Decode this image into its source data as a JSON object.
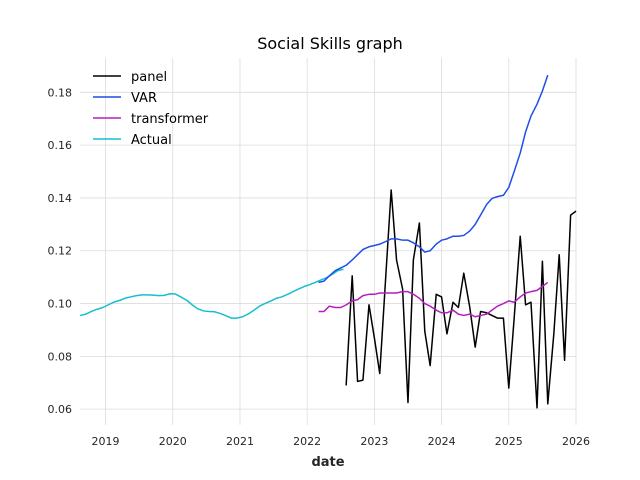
{
  "chart_data": {
    "type": "line",
    "title": "Social Skills graph",
    "xlabel": "date",
    "ylabel": "",
    "xlim": [
      2018.62,
      2026.0
    ],
    "ylim": [
      0.054,
      0.193
    ],
    "x_ticks": [
      {
        "value": 2019,
        "label": "2019"
      },
      {
        "value": 2020,
        "label": "2020"
      },
      {
        "value": 2021,
        "label": "2021"
      },
      {
        "value": 2022,
        "label": "2022"
      },
      {
        "value": 2023,
        "label": "2023"
      },
      {
        "value": 2024,
        "label": "2024"
      },
      {
        "value": 2025,
        "label": "2025"
      },
      {
        "value": 2026,
        "label": "2026"
      }
    ],
    "y_ticks": [
      {
        "value": 0.06,
        "label": "0.06"
      },
      {
        "value": 0.08,
        "label": "0.08"
      },
      {
        "value": 0.1,
        "label": "0.10"
      },
      {
        "value": 0.12,
        "label": "0.12"
      },
      {
        "value": 0.14,
        "label": "0.14"
      },
      {
        "value": 0.16,
        "label": "0.16"
      },
      {
        "value": 0.18,
        "label": "0.18"
      }
    ],
    "grid": true,
    "legend_position": "top-left",
    "series": [
      {
        "name": "panel",
        "color": "#000000",
        "points": [
          [
            2022.58,
            0.069
          ],
          [
            2022.67,
            0.1105
          ],
          [
            2022.75,
            0.0705
          ],
          [
            2022.83,
            0.071
          ],
          [
            2022.92,
            0.0995
          ],
          [
            2023.0,
            0.087
          ],
          [
            2023.08,
            0.0735
          ],
          [
            2023.17,
            0.1105
          ],
          [
            2023.25,
            0.143
          ],
          [
            2023.33,
            0.1165
          ],
          [
            2023.42,
            0.1055
          ],
          [
            2023.5,
            0.0625
          ],
          [
            2023.58,
            0.1165
          ],
          [
            2023.67,
            0.1305
          ],
          [
            2023.75,
            0.0895
          ],
          [
            2023.83,
            0.0765
          ],
          [
            2023.92,
            0.1035
          ],
          [
            2024.0,
            0.1025
          ],
          [
            2024.08,
            0.0885
          ],
          [
            2024.17,
            0.1005
          ],
          [
            2024.25,
            0.0985
          ],
          [
            2024.33,
            0.1115
          ],
          [
            2024.42,
            0.0985
          ],
          [
            2024.5,
            0.0835
          ],
          [
            2024.58,
            0.097
          ],
          [
            2024.67,
            0.0965
          ],
          [
            2024.75,
            0.0955
          ],
          [
            2024.83,
            0.0945
          ],
          [
            2024.92,
            0.0945
          ],
          [
            2025.0,
            0.068
          ],
          [
            2025.08,
            0.0945
          ],
          [
            2025.17,
            0.1255
          ],
          [
            2025.25,
            0.0995
          ],
          [
            2025.33,
            0.1005
          ],
          [
            2025.42,
            0.0605
          ],
          [
            2025.5,
            0.116
          ],
          [
            2025.58,
            0.062
          ],
          [
            2025.67,
            0.0885
          ],
          [
            2025.75,
            0.1185
          ],
          [
            2025.83,
            0.0785
          ],
          [
            2025.92,
            0.1335
          ],
          [
            2026.0,
            0.135
          ]
        ]
      },
      {
        "name": "VAR",
        "color": "#1f4fe6",
        "points": [
          [
            2022.17,
            0.108
          ],
          [
            2022.25,
            0.1085
          ],
          [
            2022.33,
            0.1105
          ],
          [
            2022.42,
            0.1125
          ],
          [
            2022.5,
            0.1135
          ],
          [
            2022.58,
            0.1145
          ],
          [
            2022.67,
            0.1165
          ],
          [
            2022.75,
            0.1185
          ],
          [
            2022.83,
            0.1205
          ],
          [
            2022.92,
            0.1215
          ],
          [
            2023.0,
            0.122
          ],
          [
            2023.08,
            0.1225
          ],
          [
            2023.17,
            0.1235
          ],
          [
            2023.25,
            0.1245
          ],
          [
            2023.33,
            0.1245
          ],
          [
            2023.42,
            0.124
          ],
          [
            2023.5,
            0.124
          ],
          [
            2023.58,
            0.123
          ],
          [
            2023.67,
            0.1215
          ],
          [
            2023.75,
            0.1195
          ],
          [
            2023.83,
            0.12
          ],
          [
            2023.92,
            0.1225
          ],
          [
            2024.0,
            0.124
          ],
          [
            2024.08,
            0.1245
          ],
          [
            2024.17,
            0.1255
          ],
          [
            2024.25,
            0.1255
          ],
          [
            2024.33,
            0.1258
          ],
          [
            2024.42,
            0.1275
          ],
          [
            2024.5,
            0.13
          ],
          [
            2024.58,
            0.1335
          ],
          [
            2024.67,
            0.1375
          ],
          [
            2024.75,
            0.1398
          ],
          [
            2024.83,
            0.1405
          ],
          [
            2024.92,
            0.141
          ],
          [
            2025.0,
            0.144
          ],
          [
            2025.08,
            0.15
          ],
          [
            2025.17,
            0.157
          ],
          [
            2025.25,
            0.165
          ],
          [
            2025.33,
            0.171
          ],
          [
            2025.42,
            0.1755
          ],
          [
            2025.5,
            0.1805
          ],
          [
            2025.58,
            0.1865
          ]
        ]
      },
      {
        "name": "transformer",
        "color": "#b31fbf",
        "points": [
          [
            2022.17,
            0.097
          ],
          [
            2022.25,
            0.097
          ],
          [
            2022.33,
            0.099
          ],
          [
            2022.42,
            0.0985
          ],
          [
            2022.5,
            0.0985
          ],
          [
            2022.58,
            0.0995
          ],
          [
            2022.67,
            0.101
          ],
          [
            2022.75,
            0.1015
          ],
          [
            2022.83,
            0.103
          ],
          [
            2022.92,
            0.1035
          ],
          [
            2023.0,
            0.1035
          ],
          [
            2023.08,
            0.104
          ],
          [
            2023.17,
            0.104
          ],
          [
            2023.25,
            0.104
          ],
          [
            2023.33,
            0.104
          ],
          [
            2023.42,
            0.1045
          ],
          [
            2023.5,
            0.1045
          ],
          [
            2023.58,
            0.1035
          ],
          [
            2023.67,
            0.102
          ],
          [
            2023.75,
            0.1
          ],
          [
            2023.83,
            0.099
          ],
          [
            2023.92,
            0.0975
          ],
          [
            2024.0,
            0.0965
          ],
          [
            2024.08,
            0.0965
          ],
          [
            2024.17,
            0.0975
          ],
          [
            2024.25,
            0.096
          ],
          [
            2024.33,
            0.0955
          ],
          [
            2024.42,
            0.096
          ],
          [
            2024.5,
            0.095
          ],
          [
            2024.58,
            0.0955
          ],
          [
            2024.67,
            0.096
          ],
          [
            2024.75,
            0.0975
          ],
          [
            2024.83,
            0.099
          ],
          [
            2024.92,
            0.1
          ],
          [
            2025.0,
            0.101
          ],
          [
            2025.08,
            0.1005
          ],
          [
            2025.17,
            0.1025
          ],
          [
            2025.25,
            0.104
          ],
          [
            2025.33,
            0.1045
          ],
          [
            2025.42,
            0.105
          ],
          [
            2025.5,
            0.1065
          ],
          [
            2025.58,
            0.108
          ]
        ]
      },
      {
        "name": "Actual",
        "color": "#17becf",
        "points": [
          [
            2018.62,
            0.0955
          ],
          [
            2018.71,
            0.096
          ],
          [
            2018.79,
            0.097
          ],
          [
            2018.87,
            0.0978
          ],
          [
            2018.96,
            0.0985
          ],
          [
            2019.04,
            0.0995
          ],
          [
            2019.12,
            0.1005
          ],
          [
            2019.21,
            0.1012
          ],
          [
            2019.29,
            0.102
          ],
          [
            2019.37,
            0.1025
          ],
          [
            2019.46,
            0.103
          ],
          [
            2019.54,
            0.1033
          ],
          [
            2019.62,
            0.1033
          ],
          [
            2019.71,
            0.1032
          ],
          [
            2019.79,
            0.103
          ],
          [
            2019.87,
            0.1031
          ],
          [
            2019.96,
            0.1037
          ],
          [
            2020.04,
            0.1036
          ],
          [
            2020.12,
            0.1025
          ],
          [
            2020.21,
            0.1012
          ],
          [
            2020.29,
            0.0995
          ],
          [
            2020.37,
            0.098
          ],
          [
            2020.46,
            0.0972
          ],
          [
            2020.54,
            0.097
          ],
          [
            2020.62,
            0.0969
          ],
          [
            2020.71,
            0.0962
          ],
          [
            2020.79,
            0.0954
          ],
          [
            2020.87,
            0.0945
          ],
          [
            2020.96,
            0.0945
          ],
          [
            2021.04,
            0.095
          ],
          [
            2021.12,
            0.096
          ],
          [
            2021.21,
            0.0975
          ],
          [
            2021.29,
            0.099
          ],
          [
            2021.37,
            0.1
          ],
          [
            2021.46,
            0.101
          ],
          [
            2021.54,
            0.102
          ],
          [
            2021.62,
            0.1025
          ],
          [
            2021.71,
            0.1035
          ],
          [
            2021.79,
            0.1045
          ],
          [
            2021.87,
            0.1055
          ],
          [
            2021.96,
            0.1065
          ],
          [
            2022.04,
            0.1072
          ],
          [
            2022.12,
            0.108
          ],
          [
            2022.21,
            0.109
          ],
          [
            2022.29,
            0.1098
          ],
          [
            2022.37,
            0.111
          ],
          [
            2022.46,
            0.1125
          ],
          [
            2022.54,
            0.113
          ]
        ]
      }
    ]
  }
}
